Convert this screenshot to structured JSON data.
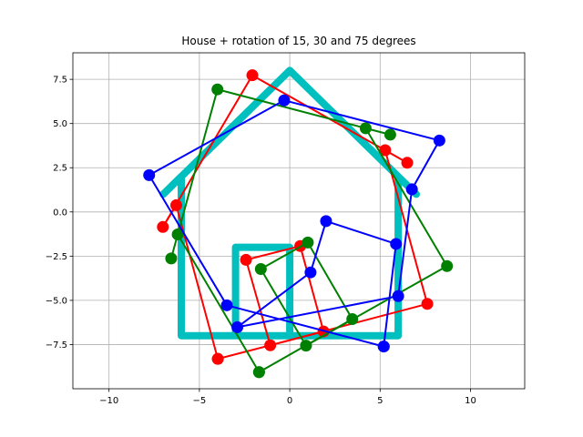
{
  "chart_data": {
    "type": "line",
    "title": "House + rotation of 15, 30 and 75 degrees",
    "xlabel": "",
    "ylabel": "",
    "xlim": [
      -12,
      13
    ],
    "ylim": [
      -10,
      9
    ],
    "xticks": [
      -10,
      -5,
      0,
      5,
      10
    ],
    "xtick_labels": [
      "−10",
      "−5",
      "0",
      "5",
      "10"
    ],
    "yticks": [
      -7.5,
      -5.0,
      -2.5,
      0.0,
      2.5,
      5.0,
      7.5
    ],
    "ytick_labels": [
      "−7.5",
      "−5.0",
      "−2.5",
      "0.0",
      "2.5",
      "5.0",
      "7.5"
    ],
    "grid": true,
    "series": [
      {
        "color": "#00bfbf",
        "style": "thick-line",
        "x": [
          -6,
          -6,
          -7,
          0,
          7,
          6,
          6,
          -3,
          -3,
          0,
          0,
          -6
        ],
        "y": [
          -7,
          2,
          1,
          8,
          1,
          2,
          -7,
          -7,
          -2,
          -2,
          -7,
          -7
        ]
      },
      {
        "color": "#ff0000",
        "style": "line-marker",
        "x": [
          -3.98,
          -6.28,
          -7.02,
          -2.07,
          6.5,
          5.28,
          7.61,
          -1.08,
          -2.42,
          0.58,
          1.87,
          -3.98
        ],
        "y": [
          -8.31,
          0.38,
          -0.85,
          7.73,
          2.78,
          3.49,
          -5.2,
          -7.54,
          -2.71,
          -1.93,
          -6.76,
          -8.31
        ]
      },
      {
        "color": "#008000",
        "style": "line-marker",
        "x": [
          -1.7,
          -6.2,
          -6.56,
          -4.0,
          5.56,
          4.2,
          8.7,
          0.9,
          -1.6,
          1.0,
          3.46,
          -1.7
        ],
        "y": [
          -9.06,
          -1.27,
          -2.63,
          6.93,
          4.37,
          4.73,
          -3.06,
          -7.56,
          -3.23,
          -1.73,
          -6.06,
          -9.06
        ]
      },
      {
        "color": "#0000ff",
        "style": "line-marker",
        "x": [
          5.2,
          -3.48,
          -7.78,
          -0.31,
          8.28,
          6.76,
          6.0,
          -2.9,
          1.15,
          2.01,
          5.88,
          5.2
        ],
        "y": [
          -7.61,
          -5.28,
          2.08,
          6.31,
          4.04,
          1.28,
          -4.76,
          -6.52,
          -3.42,
          -0.52,
          -1.81,
          -7.61
        ]
      }
    ]
  }
}
